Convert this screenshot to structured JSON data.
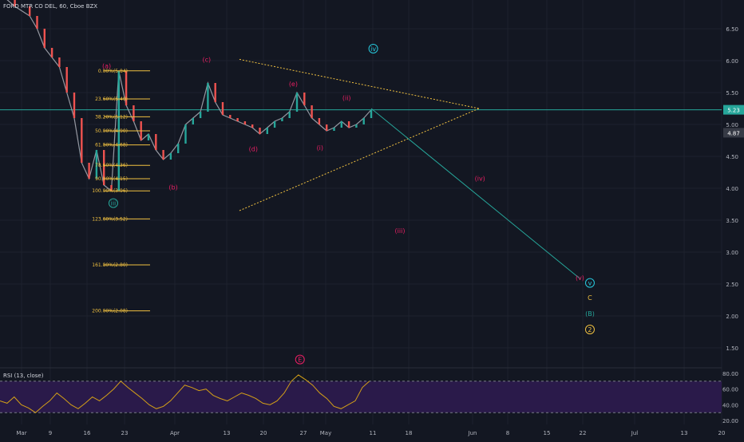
{
  "header": {
    "symbol_title": "FORD MTR CO DEL, 60, Cboe BZX"
  },
  "rsi": {
    "label": "RSI (13, close)",
    "ticks": [
      "80.00",
      "60.00",
      "40.00",
      "20.00"
    ],
    "levels": [
      70,
      30
    ],
    "range": [
      15,
      85
    ]
  },
  "price_tags": {
    "last": "5.23",
    "other": "4.87"
  },
  "chart_data": {
    "type": "line",
    "title": "FORD MTR CO DEL, 60, Cboe BZX",
    "x_ticks": [
      "Mar",
      "9",
      "16",
      "23",
      "Apr",
      "13",
      "20",
      "27",
      "May",
      "11",
      "18",
      "Jun",
      "8",
      "15",
      "22",
      "Jul",
      "13",
      "20"
    ],
    "y_ticks": [
      "6.50",
      "6.00",
      "5.50",
      "5.00",
      "4.50",
      "4.00",
      "3.50",
      "3.00",
      "2.50",
      "2.00",
      "1.50"
    ],
    "ylim": [
      1.2,
      6.95
    ],
    "grid": true,
    "price_series": [
      [
        0,
        7.05
      ],
      [
        2,
        6.85
      ],
      [
        4,
        6.7
      ],
      [
        5,
        6.5
      ],
      [
        6,
        6.2
      ],
      [
        7,
        6.05
      ],
      [
        8,
        5.9
      ],
      [
        9,
        5.5
      ],
      [
        10,
        5.1
      ],
      [
        11,
        4.4
      ],
      [
        12,
        4.15
      ],
      [
        13,
        4.6
      ],
      [
        14,
        4.05
      ],
      [
        15,
        3.96
      ],
      [
        16,
        5.84
      ],
      [
        17,
        5.3
      ],
      [
        18,
        5.05
      ],
      [
        19,
        4.75
      ],
      [
        20,
        4.85
      ],
      [
        21,
        4.6
      ],
      [
        22,
        4.45
      ],
      [
        23,
        4.55
      ],
      [
        24,
        4.7
      ],
      [
        25,
        5.0
      ],
      [
        26,
        5.1
      ],
      [
        27,
        5.2
      ],
      [
        28,
        5.65
      ],
      [
        29,
        5.35
      ],
      [
        30,
        5.15
      ],
      [
        31,
        5.1
      ],
      [
        32,
        5.05
      ],
      [
        33,
        5.0
      ],
      [
        34,
        4.95
      ],
      [
        35,
        4.85
      ],
      [
        36,
        4.95
      ],
      [
        37,
        5.05
      ],
      [
        38,
        5.1
      ],
      [
        39,
        5.2
      ],
      [
        40,
        5.5
      ],
      [
        41,
        5.3
      ],
      [
        42,
        5.1
      ],
      [
        43,
        5.0
      ],
      [
        44,
        4.9
      ],
      [
        45,
        4.95
      ],
      [
        46,
        5.05
      ],
      [
        47,
        4.95
      ],
      [
        48,
        5.0
      ],
      [
        49,
        5.1
      ],
      [
        50,
        5.23
      ]
    ],
    "fib_levels": [
      {
        "label": "0.00%(5.84)",
        "value": 5.84
      },
      {
        "label": "23.60%(5.40)",
        "value": 5.4
      },
      {
        "label": "38.20%(5.12)",
        "value": 5.12
      },
      {
        "label": "50.00%(4.90)",
        "value": 4.9
      },
      {
        "label": "61.80%(4.68)",
        "value": 4.68
      },
      {
        "label": "78.60%(4.36)",
        "value": 4.36
      },
      {
        "label": "90.00%(4.15)",
        "value": 4.15
      },
      {
        "label": "100.00%(3.96)",
        "value": 3.96
      },
      {
        "label": "123.60%(3.52)",
        "value": 3.52
      },
      {
        "label": "161.80%(2.80)",
        "value": 2.8
      },
      {
        "label": "200.00%(2.08)",
        "value": 2.08
      }
    ],
    "triangle": {
      "upper": [
        [
          19,
          6.02
        ],
        [
          78,
          5.25
        ]
      ],
      "lower": [
        [
          19,
          3.65
        ],
        [
          78,
          5.25
        ]
      ]
    },
    "projection": {
      "from": [
        50,
        5.25
      ],
      "to": [
        100,
        2.58
      ]
    },
    "horizontal_line": 5.23,
    "wave_labels": [
      {
        "text": "(a)",
        "x": 16,
        "y": 5.88,
        "color": "#e91e63",
        "circle": false
      },
      {
        "text": "(b)",
        "x": 26,
        "y": 3.98,
        "color": "#e91e63",
        "circle": false
      },
      {
        "text": "(c)",
        "x": 31,
        "y": 5.98,
        "color": "#e91e63",
        "circle": false
      },
      {
        "text": "(d)",
        "x": 38,
        "y": 4.58,
        "color": "#e91e63",
        "circle": false
      },
      {
        "text": "(e)",
        "x": 44,
        "y": 5.6,
        "color": "#e91e63",
        "circle": false
      },
      {
        "text": "(i)",
        "x": 48,
        "y": 4.6,
        "color": "#e91e63",
        "circle": false
      },
      {
        "text": "(ii)",
        "x": 52,
        "y": 5.38,
        "color": "#e91e63",
        "circle": false
      },
      {
        "text": "(iii)",
        "x": 60,
        "y": 3.3,
        "color": "#e91e63",
        "circle": false
      },
      {
        "text": "(iv)",
        "x": 72,
        "y": 4.12,
        "color": "#e91e63",
        "circle": false
      },
      {
        "text": "(v)",
        "x": 87,
        "y": 2.56,
        "color": "#e91e63",
        "circle": false
      },
      {
        "text": "iii",
        "x": 17,
        "y": 3.73,
        "color": "#26a69a",
        "circle": true
      },
      {
        "text": "iv",
        "x": 56,
        "y": 6.15,
        "color": "#26c6da",
        "circle": true
      },
      {
        "text": "v",
        "x": 88.5,
        "y": 2.48,
        "color": "#26c6da",
        "circle": true
      },
      {
        "text": "C",
        "x": 88.5,
        "y": 2.25,
        "color": "#f0c040",
        "circle": false
      },
      {
        "text": "(B)",
        "x": 88.5,
        "y": 2.0,
        "color": "#26a69a",
        "circle": false
      },
      {
        "text": "2",
        "x": 88.5,
        "y": 1.75,
        "color": "#f0c040",
        "circle": true
      },
      {
        "text": "E",
        "x": 45,
        "y": 1.28,
        "color": "#e91e63",
        "circle": true
      }
    ],
    "rsi_values": [
      45,
      42,
      50,
      40,
      36,
      30,
      38,
      45,
      55,
      48,
      40,
      35,
      42,
      50,
      45,
      52,
      60,
      70,
      62,
      55,
      48,
      40,
      35,
      38,
      45,
      55,
      65,
      62,
      58,
      60,
      52,
      48,
      45,
      50,
      55,
      52,
      48,
      42,
      40,
      45,
      55,
      70,
      78,
      72,
      65,
      55,
      48,
      38,
      35,
      40,
      45,
      62,
      70
    ]
  }
}
